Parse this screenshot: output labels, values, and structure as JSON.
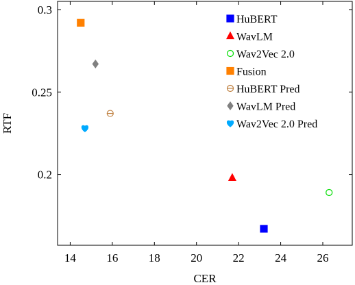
{
  "chart_data": {
    "type": "scatter",
    "title": "",
    "xlabel": "CER",
    "ylabel": "RTF",
    "xlim": [
      13.4,
      27.4
    ],
    "ylim": [
      0.157,
      0.305
    ],
    "xticks": [
      14,
      16,
      18,
      20,
      22,
      24,
      26
    ],
    "xtick_labels": [
      "14",
      "16",
      "18",
      "20",
      "22",
      "24",
      "26"
    ],
    "yticks": [
      0.2,
      0.25,
      0.3
    ],
    "ytick_labels": [
      "0.2",
      "0.25",
      "0.3"
    ],
    "grid": false,
    "legend_position": "top-right",
    "series": [
      {
        "name": "HuBERT",
        "marker": "square",
        "filled": true,
        "color": "#0000ff",
        "points": [
          {
            "x": 23.2,
            "y": 0.167
          }
        ]
      },
      {
        "name": "WavLM",
        "marker": "triangle",
        "filled": true,
        "color": "#ff0000",
        "points": [
          {
            "x": 21.7,
            "y": 0.198
          }
        ]
      },
      {
        "name": "Wav2Vec 2.0",
        "marker": "circle",
        "filled": false,
        "color": "#00dd00",
        "points": [
          {
            "x": 26.3,
            "y": 0.189
          }
        ]
      },
      {
        "name": "Fusion",
        "marker": "square",
        "filled": true,
        "color": "#ff8000",
        "points": [
          {
            "x": 14.5,
            "y": 0.292
          }
        ]
      },
      {
        "name": "HuBERT Pred",
        "marker": "circle-slash",
        "filled": false,
        "color": "#bf8040",
        "points": [
          {
            "x": 15.9,
            "y": 0.237
          }
        ]
      },
      {
        "name": "WavLM Pred",
        "marker": "diamond",
        "filled": true,
        "color": "#808080",
        "points": [
          {
            "x": 15.2,
            "y": 0.267
          }
        ]
      },
      {
        "name": "Wav2Vec 2.0 Pred",
        "marker": "heart",
        "filled": true,
        "color": "#00aaff",
        "points": [
          {
            "x": 14.7,
            "y": 0.228
          }
        ]
      }
    ]
  }
}
